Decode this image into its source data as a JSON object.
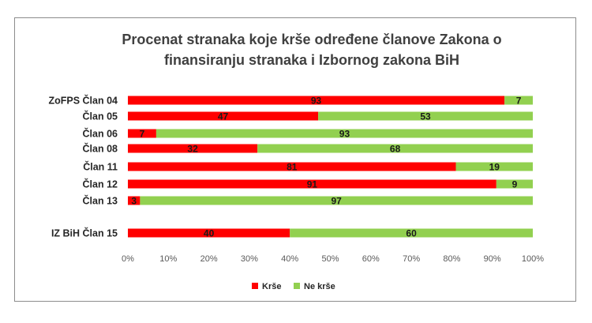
{
  "chart_data": {
    "type": "bar",
    "orientation": "horizontal",
    "stacked": "percent",
    "title_lines": [
      "Procenat stranaka koje krše određene članove Zakona o",
      "finansiranju stranaka i Izbornog zakona BiH"
    ],
    "categories": [
      "ZoFPS Član 04",
      "Član 05",
      "Član 06",
      "Član 08",
      "Član 11",
      "Član 12",
      "Član 13",
      "IZ BiH Član 15"
    ],
    "series": [
      {
        "name": "Krše",
        "color": "#ff0000",
        "values": [
          93,
          47,
          7,
          32,
          81,
          91,
          3,
          40
        ]
      },
      {
        "name": "Ne krše",
        "color": "#92d050",
        "values": [
          7,
          53,
          93,
          68,
          19,
          9,
          97,
          60
        ]
      }
    ],
    "x_ticks": [
      "0%",
      "10%",
      "20%",
      "30%",
      "40%",
      "50%",
      "60%",
      "70%",
      "80%",
      "90%",
      "100%"
    ],
    "xlim": [
      0,
      100
    ],
    "grid": false,
    "legend_position": "bottom"
  }
}
